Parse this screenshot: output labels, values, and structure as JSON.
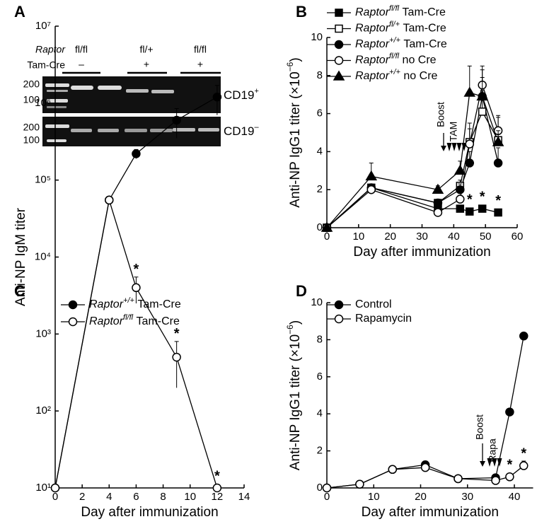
{
  "gel": {
    "panel": "A",
    "row_labels": [
      "Raptor",
      "Tam-Cre"
    ],
    "genotypes": [
      "fl/fl",
      "fl/+",
      "fl/fl"
    ],
    "cre": [
      "–",
      "+",
      "+"
    ],
    "gels": [
      {
        "ladder": [
          "200",
          "100"
        ],
        "population": "CD19",
        "sign": "+"
      },
      {
        "ladder": [
          "200",
          "100"
        ],
        "population": "CD19",
        "sign": "–"
      }
    ]
  },
  "chart_data": [
    {
      "panel": "B",
      "type": "line",
      "xlabel": "Day after immunization",
      "ylabel": [
        "Anti-NP IgG1 titer (×10",
        "−6",
        ")"
      ],
      "annotations": [
        "Boost",
        "TAM"
      ],
      "legend": "upper left",
      "x": [
        0,
        14,
        35,
        42,
        45,
        49,
        54
      ],
      "xlim": [
        0,
        60
      ],
      "xticks": [
        0,
        10,
        20,
        30,
        40,
        50,
        60
      ],
      "ylim": [
        0,
        10
      ],
      "yticks": [
        0,
        2,
        4,
        6,
        8,
        10
      ],
      "series": [
        {
          "gene": "Raptor",
          "genotype": "fl/fl",
          "treatment": "Tam-Cre",
          "marker": "square",
          "filled": true,
          "color": "#000000",
          "values": [
            0,
            2.1,
            1.0,
            1.0,
            0.85,
            1.0,
            0.8
          ],
          "errors": [
            null,
            0.15,
            0.1,
            0.1,
            0.1,
            0.1,
            0.1
          ],
          "significance": [
            null,
            null,
            null,
            null,
            "*",
            "*",
            "*"
          ]
        },
        {
          "gene": "Raptor",
          "genotype": "fl/+",
          "treatment": "Tam-Cre",
          "marker": "square",
          "filled": false,
          "color": "#000000",
          "values": [
            0,
            2.1,
            1.3,
            2.2,
            4.5,
            6.1,
            4.6
          ],
          "errors": [
            null,
            0.2,
            0.2,
            0.3,
            1.0,
            1.1,
            1.2
          ]
        },
        {
          "gene": "Raptor",
          "genotype": "+/+",
          "treatment": "Tam-Cre",
          "marker": "circle",
          "filled": true,
          "color": "#000000",
          "values": [
            0,
            2.1,
            1.3,
            2.0,
            3.4,
            6.9,
            3.4
          ],
          "errors": [
            null,
            0.2,
            0.2,
            0.3,
            0.6,
            1.0,
            0.8
          ]
        },
        {
          "gene": "Raptor",
          "genotype": "fl/fl",
          "treatment": "no Cre",
          "marker": "circle",
          "filled": false,
          "color": "#000000",
          "values": [
            0,
            2.0,
            0.8,
            1.5,
            4.4,
            7.5,
            5.1
          ],
          "errors": [
            null,
            0.2,
            0.1,
            0.2,
            0.8,
            0.8,
            0.8
          ]
        },
        {
          "gene": "Raptor",
          "genotype": "+/+",
          "treatment": "no Cre",
          "marker": "triangle",
          "filled": true,
          "color": "#000000",
          "values": [
            0,
            2.7,
            2.0,
            3.0,
            7.1,
            6.9,
            4.5
          ],
          "errors": [
            null,
            0.7,
            0.2,
            0.5,
            1.4,
            1.6,
            0.6
          ]
        }
      ]
    },
    {
      "panel": "C",
      "type": "line",
      "xlabel": "Day after immunization",
      "ylabel": [
        "Anti-NP IgM titer"
      ],
      "legend": "upper left",
      "log_y": true,
      "x": [
        0,
        4,
        6,
        9,
        12
      ],
      "xlim": [
        0,
        14
      ],
      "xticks": [
        0,
        2,
        4,
        6,
        8,
        10,
        12,
        14
      ],
      "ylim": [
        10,
        10000000
      ],
      "yticks": [
        {
          "value": 10,
          "label": "10¹"
        },
        {
          "value": 100,
          "label": "10²"
        },
        {
          "value": 1000,
          "label": "10³"
        },
        {
          "value": 10000,
          "label": "10⁴"
        },
        {
          "value": 100000,
          "label": "10⁵"
        },
        {
          "value": 1000000,
          "label": "10⁶"
        },
        {
          "value": 10000000,
          "label": "10⁷"
        }
      ],
      "series": [
        {
          "gene": "Raptor",
          "genotype": "+/+",
          "treatment": "Tam-Cre",
          "marker": "circle",
          "filled": true,
          "color": "#000000",
          "values": [
            10,
            55000,
            220000,
            600000,
            1200000
          ],
          "errors": [
            null,
            null,
            30000,
            250000,
            500000
          ]
        },
        {
          "gene": "Raptor",
          "genotype": "fl/fl",
          "treatment": "Tam-Cre",
          "marker": "circle",
          "filled": false,
          "color": "#000000",
          "values": [
            10,
            55000,
            4000,
            500,
            10
          ],
          "errors": [
            null,
            null,
            1500,
            300,
            null
          ],
          "significance": [
            null,
            null,
            "*",
            "*",
            "*"
          ]
        }
      ]
    },
    {
      "panel": "D",
      "type": "line",
      "xlabel": "Day after immunization",
      "ylabel": [
        "Anti-NP IgG1 titer (×10",
        "−6",
        ")"
      ],
      "annotations": [
        "Boost",
        "Rapa"
      ],
      "legend": "upper left",
      "x": [
        0,
        7,
        14,
        21,
        28,
        36,
        39,
        42
      ],
      "xlim": [
        0,
        44
      ],
      "xticks": [
        0,
        10,
        20,
        30,
        40
      ],
      "ylim": [
        0,
        10
      ],
      "yticks": [
        0,
        2,
        4,
        6,
        8,
        10
      ],
      "series": [
        {
          "name": "Control",
          "marker": "circle",
          "filled": true,
          "color": "#000000",
          "values": [
            0,
            0.2,
            1.0,
            1.25,
            0.5,
            0.55,
            4.1,
            8.2
          ],
          "errors": [
            null,
            null,
            0.1,
            0.2,
            null,
            0.1,
            null,
            null
          ]
        },
        {
          "name": "Rapamycin",
          "marker": "circle",
          "filled": false,
          "color": "#000000",
          "values": [
            0,
            0.2,
            1.0,
            1.1,
            0.5,
            0.4,
            0.6,
            1.2
          ],
          "errors": [
            null,
            null,
            null,
            0.2,
            null,
            null,
            0.1,
            0.25
          ],
          "significance": [
            null,
            null,
            null,
            null,
            null,
            null,
            "*",
            "*"
          ]
        }
      ]
    }
  ]
}
